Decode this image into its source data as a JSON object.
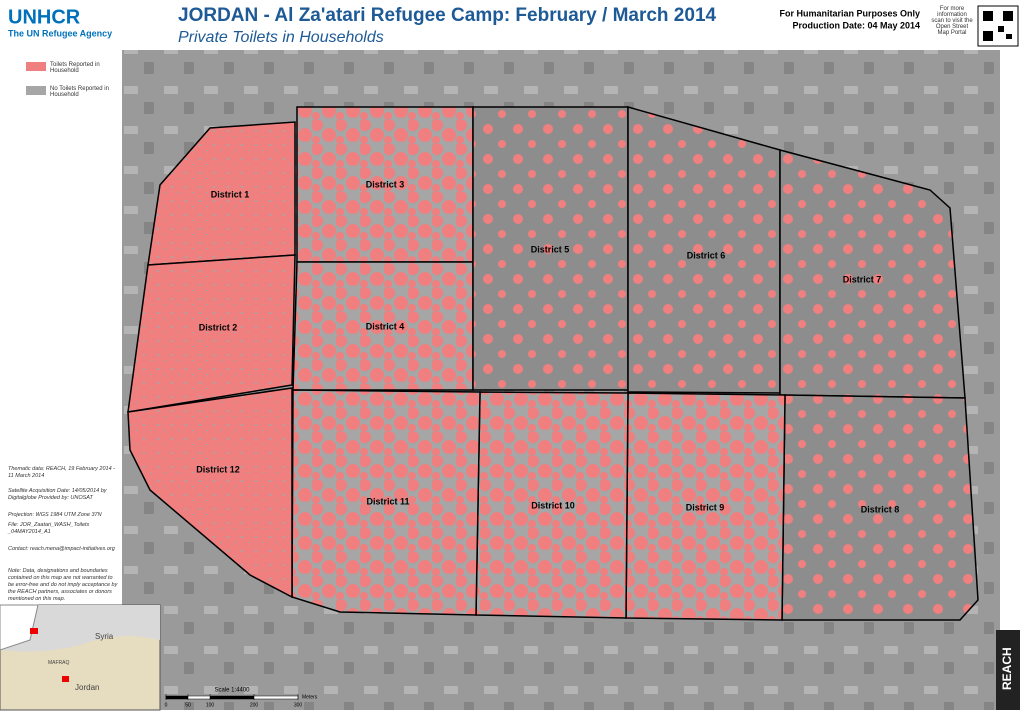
{
  "header": {
    "logo": "UNHCR",
    "logo_sub": "The UN Refugee Agency",
    "title": "JORDAN - Al Za'atari Refugee Camp: February / March 2014",
    "subtitle": "Private Toilets in Households",
    "disclaimer": "For Humanitarian Purposes Only",
    "production_date": "Production Date:  04 May 2014",
    "qr_note": "For more information scan to visit the Open Street Map Portal"
  },
  "legend": [
    {
      "label": "Toilets Reported in Household",
      "color": "#f07f7f"
    },
    {
      "label": "No Toilets Reported in Household",
      "color": "#a6a6a6"
    }
  ],
  "districts": [
    "District 1",
    "District 2",
    "District 3",
    "District 4",
    "District 5",
    "District 6",
    "District 7",
    "District 8",
    "District 9",
    "District 10",
    "District 11",
    "District 12"
  ],
  "notes": [
    "Thematic data: REACH, 19 February 2014 - 11 March 2014",
    "Satellite Acquisition Date: 14/05/2014 by Digitalglobe Provided by: UNOSAT",
    "Projection: WGS 1984 UTM Zone 37N",
    "File: JOR_Zaatari_WASH_Toilets _04MAY2014_A1",
    "Contact: reach.mena@impact-initiatives.org",
    "Note: Data, designations and boundaries contained on this map are not warranted to be error-free and do not imply acceptance by the REACH partners, associates or donors mentioned on this map."
  ],
  "inset": {
    "labels": [
      "Syria",
      "MAFRAQ",
      "Jordan"
    ]
  },
  "scale": {
    "title": "Scale 1:4400",
    "unit": "Meters",
    "ticks": [
      0,
      50,
      100,
      200,
      300
    ]
  },
  "brand": "REACH"
}
